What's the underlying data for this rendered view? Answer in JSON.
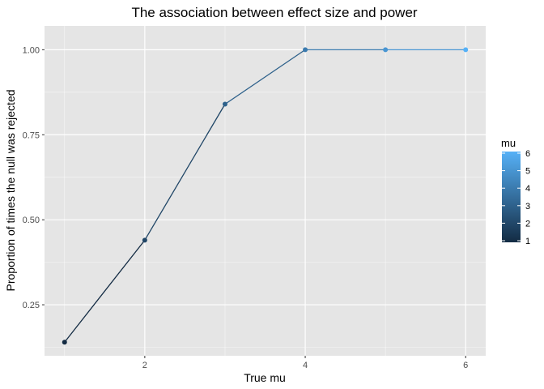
{
  "chart_data": {
    "type": "line",
    "title": "The association between effect size and power",
    "xlabel": "True mu",
    "ylabel": "Proportion of times the null was rejected",
    "x": [
      1,
      2,
      3,
      4,
      5,
      6
    ],
    "y": [
      0.14,
      0.44,
      0.84,
      1.0,
      1.0,
      1.0
    ],
    "xlim": [
      0.75,
      6.25
    ],
    "ylim": [
      0.1,
      1.07
    ],
    "x_ticks": [
      2,
      4,
      6
    ],
    "x_tick_labels": [
      "2",
      "4",
      "6"
    ],
    "y_ticks": [
      0.25,
      0.5,
      0.75,
      1.0
    ],
    "y_tick_labels": [
      "0.25",
      "0.50",
      "0.75",
      "1.00"
    ],
    "grid": true,
    "color_scale": {
      "variable": "mu",
      "low_color": "#132B43",
      "high_color": "#56B1F7",
      "range": [
        1,
        6
      ],
      "ticks": [
        1,
        2,
        3,
        4,
        5,
        6
      ],
      "tick_labels": [
        "1",
        "2",
        "3",
        "4",
        "5",
        "6"
      ]
    },
    "legend": {
      "title": "mu",
      "placement": "right"
    },
    "panel_color": "#e5e5e5",
    "grid_color": "#ffffff"
  }
}
